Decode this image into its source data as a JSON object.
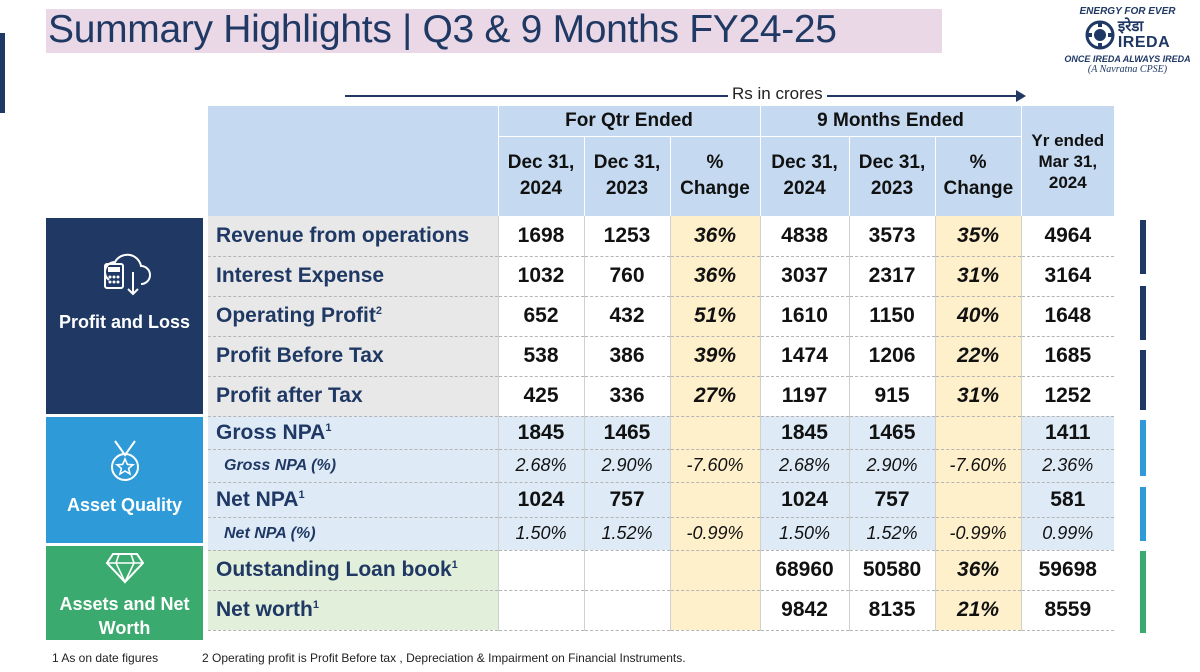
{
  "title": "Summary Highlights |  Q3 & 9 Months FY24-25",
  "logo": {
    "tagline_top": "ENERGY FOR EVER",
    "name_hindi": "इरेडा",
    "name_english": "IREDA",
    "tagline_bottom": "ONCE IREDA ALWAYS IREDA",
    "cpse": "(A Navratna CPSE)"
  },
  "units_label": "Rs in crores",
  "header": {
    "group_qtr": "For Qtr Ended",
    "group_9m": "9 Months Ended",
    "col_q_2024": "Dec 31, 2024",
    "col_q_2023": "Dec 31, 2023",
    "col_q_change": "% Change",
    "col_9m_2024": "Dec 31, 2024",
    "col_9m_2023": "Dec 31, 2023",
    "col_9m_change": "% Change",
    "col_yr": "Yr ended Mar 31, 2024"
  },
  "sections": {
    "profit_loss": "Profit and Loss",
    "asset_quality": "Asset Quality",
    "assets_networth": "Assets and Net Worth"
  },
  "rows": [
    {
      "label": "Revenue from operations",
      "sup": "",
      "q24": "1698",
      "q23": "1253",
      "qchg": "36%",
      "m24": "4838",
      "m23": "3573",
      "mchg": "35%",
      "yr": "4964"
    },
    {
      "label": "Interest Expense",
      "sup": "",
      "q24": "1032",
      "q23": "760",
      "qchg": "36%",
      "m24": "3037",
      "m23": "2317",
      "mchg": "31%",
      "yr": "3164"
    },
    {
      "label": "Operating Profit",
      "sup": "2",
      "q24": "652",
      "q23": "432",
      "qchg": "51%",
      "m24": "1610",
      "m23": "1150",
      "mchg": "40%",
      "yr": "1648"
    },
    {
      "label": "Profit Before Tax",
      "sup": "",
      "q24": "538",
      "q23": "386",
      "qchg": "39%",
      "m24": "1474",
      "m23": "1206",
      "mchg": "22%",
      "yr": "1685"
    },
    {
      "label": "Profit after Tax",
      "sup": "",
      "q24": "425",
      "q23": "336",
      "qchg": "27%",
      "m24": "1197",
      "m23": "915",
      "mchg": "31%",
      "yr": "1252"
    },
    {
      "label": "Gross NPA",
      "sup": "1",
      "q24": "1845",
      "q23": "1465",
      "qchg": "",
      "m24": "1845",
      "m23": "1465",
      "mchg": "",
      "yr": "1411"
    },
    {
      "label": "Gross NPA (%)",
      "sup": "",
      "q24": "2.68%",
      "q23": "2.90%",
      "qchg": "-7.60%",
      "m24": "2.68%",
      "m23": "2.90%",
      "mchg": "-7.60%",
      "yr": "2.36%"
    },
    {
      "label": "Net NPA",
      "sup": "1",
      "q24": "1024",
      "q23": "757",
      "qchg": "",
      "m24": "1024",
      "m23": "757",
      "mchg": "",
      "yr": "581"
    },
    {
      "label": "Net NPA (%)",
      "sup": "",
      "q24": "1.50%",
      "q23": "1.52%",
      "qchg": "-0.99%",
      "m24": "1.50%",
      "m23": "1.52%",
      "mchg": "-0.99%",
      "yr": "0.99%"
    },
    {
      "label": "Outstanding Loan book",
      "sup": "1",
      "q24": "",
      "q23": "",
      "qchg": "",
      "m24": "68960",
      "m23": "50580",
      "mchg": "36%",
      "yr": "59698"
    },
    {
      "label": "Net worth",
      "sup": "1",
      "q24": "",
      "q23": "",
      "qchg": "",
      "m24": "9842",
      "m23": "8135",
      "mchg": "21%",
      "yr": "8559"
    }
  ],
  "footnotes": {
    "note1": "1 As on date figures",
    "note2": "2 Operating profit is Profit Before tax , Depreciation & Impairment on Financial Instruments."
  },
  "colors": {
    "navy": "#1f3864",
    "blue": "#2e9bd8",
    "green": "#3aaa6e"
  }
}
